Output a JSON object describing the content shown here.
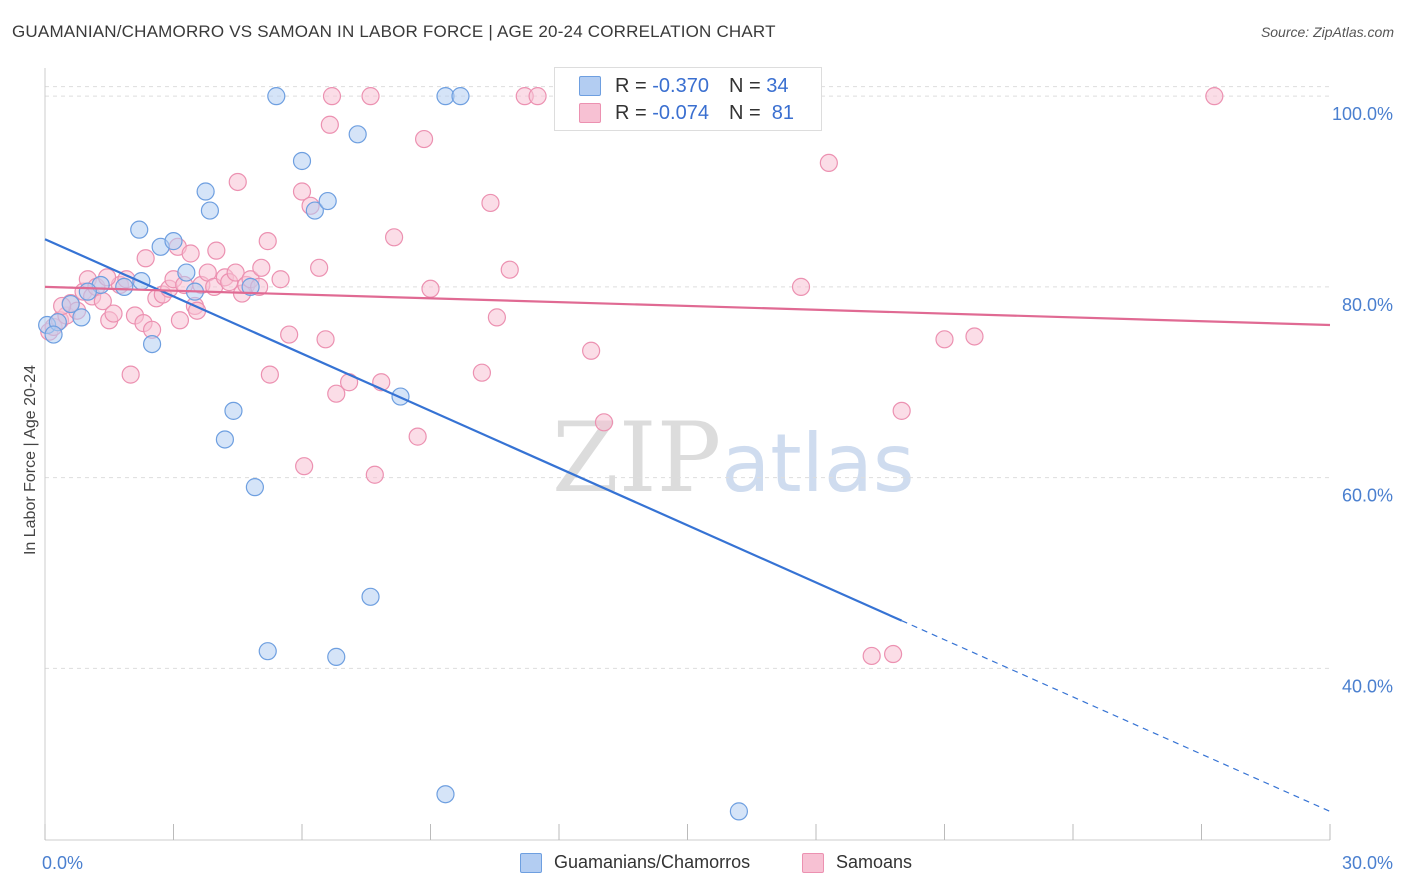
{
  "title": "GUAMANIAN/CHAMORRO VS SAMOAN IN LABOR FORCE | AGE 20-24 CORRELATION CHART",
  "source": "Source: ZipAtlas.com",
  "watermark": {
    "zip": "ZIP",
    "atlas": "atlas"
  },
  "legend_top": {
    "rows": [
      {
        "r_label": "R =",
        "r_value": "-0.370",
        "n_label": "N =",
        "n_value": "34"
      },
      {
        "r_label": "R =",
        "r_value": "-0.074",
        "n_label": "N =",
        "n_value": "81"
      }
    ]
  },
  "legend_bottom": {
    "items": [
      "Guamanians/Chamorros",
      "Samoans"
    ]
  },
  "colors": {
    "blue_fill": "#b3cdf2",
    "blue_stroke": "#6e9fe0",
    "blue_line": "#3673d4",
    "pink_fill": "#f7c1d3",
    "pink_stroke": "#ec91b1",
    "pink_line": "#e06a93",
    "grid": "#dddddd",
    "tick_text": "#4a7fcf"
  },
  "chart_data": {
    "type": "scatter",
    "title": "GUAMANIAN/CHAMORRO VS SAMOAN IN LABOR FORCE | AGE 20-24 CORRELATION CHART",
    "xlabel": "",
    "ylabel": "In Labor Force | Age 20-24",
    "xlim": [
      0,
      30
    ],
    "ylim": [
      22,
      104
    ],
    "x_tick_labels": [
      "0.0%",
      "30.0%"
    ],
    "y_ticks": [
      40,
      60,
      80,
      100
    ],
    "y_tick_labels": [
      "40.0%",
      "60.0%",
      "80.0%",
      "100.0%"
    ],
    "grid": true,
    "legend_position": "top-center",
    "series": [
      {
        "name": "Guamanians/Chamorros",
        "color": "#b3cdf2",
        "points": [
          [
            0.05,
            76.0
          ],
          [
            0.3,
            76.3
          ],
          [
            0.6,
            78.2
          ],
          [
            0.85,
            76.8
          ],
          [
            1.3,
            80.2
          ],
          [
            1.85,
            80.0
          ],
          [
            2.25,
            80.6
          ],
          [
            2.2,
            86.0
          ],
          [
            2.5,
            74.0
          ],
          [
            2.7,
            84.2
          ],
          [
            3.0,
            84.8
          ],
          [
            3.3,
            81.5
          ],
          [
            3.5,
            79.5
          ],
          [
            3.75,
            90.0
          ],
          [
            3.85,
            88.0
          ],
          [
            4.2,
            64.0
          ],
          [
            4.4,
            67.0
          ],
          [
            4.8,
            80.0
          ],
          [
            4.9,
            59.0
          ],
          [
            5.2,
            41.8
          ],
          [
            5.4,
            100.0
          ],
          [
            6.0,
            93.2
          ],
          [
            6.3,
            88.0
          ],
          [
            6.6,
            89.0
          ],
          [
            6.8,
            41.2
          ],
          [
            7.3,
            96.0
          ],
          [
            7.6,
            47.5
          ],
          [
            8.3,
            68.5
          ],
          [
            9.35,
            26.8
          ],
          [
            9.35,
            100.0
          ],
          [
            9.7,
            100.0
          ],
          [
            16.2,
            25.0
          ],
          [
            0.2,
            75.0
          ],
          [
            1.0,
            79.5
          ]
        ]
      },
      {
        "name": "Samoans",
        "color": "#f7c1d3",
        "points": [
          [
            0.1,
            75.3
          ],
          [
            0.2,
            75.8
          ],
          [
            0.35,
            76.5
          ],
          [
            0.5,
            77.0
          ],
          [
            0.6,
            78.3
          ],
          [
            0.75,
            77.5
          ],
          [
            0.9,
            79.5
          ],
          [
            1.0,
            80.8
          ],
          [
            1.1,
            79.0
          ],
          [
            1.2,
            80.0
          ],
          [
            1.35,
            78.5
          ],
          [
            1.5,
            76.5
          ],
          [
            1.6,
            77.2
          ],
          [
            1.75,
            80.2
          ],
          [
            1.9,
            80.8
          ],
          [
            2.0,
            70.8
          ],
          [
            2.1,
            77.0
          ],
          [
            2.3,
            76.2
          ],
          [
            2.35,
            83.0
          ],
          [
            2.5,
            75.5
          ],
          [
            2.6,
            78.8
          ],
          [
            2.75,
            79.2
          ],
          [
            2.9,
            79.8
          ],
          [
            3.0,
            80.8
          ],
          [
            3.1,
            84.2
          ],
          [
            3.15,
            76.5
          ],
          [
            3.25,
            80.2
          ],
          [
            3.4,
            83.5
          ],
          [
            3.5,
            78.0
          ],
          [
            3.55,
            77.5
          ],
          [
            3.65,
            80.2
          ],
          [
            3.8,
            81.5
          ],
          [
            3.95,
            80.0
          ],
          [
            4.0,
            83.8
          ],
          [
            4.2,
            81.0
          ],
          [
            4.3,
            80.5
          ],
          [
            4.45,
            81.5
          ],
          [
            4.5,
            91.0
          ],
          [
            4.6,
            79.3
          ],
          [
            4.7,
            80.2
          ],
          [
            4.8,
            80.8
          ],
          [
            5.0,
            80.0
          ],
          [
            5.05,
            82.0
          ],
          [
            5.2,
            84.8
          ],
          [
            5.25,
            70.8
          ],
          [
            5.5,
            80.8
          ],
          [
            5.7,
            75.0
          ],
          [
            6.0,
            90.0
          ],
          [
            6.05,
            61.2
          ],
          [
            6.2,
            88.5
          ],
          [
            6.4,
            82.0
          ],
          [
            6.55,
            74.5
          ],
          [
            6.7,
            100.0
          ],
          [
            6.8,
            68.8
          ],
          [
            6.65,
            97.0
          ],
          [
            7.1,
            70.0
          ],
          [
            7.6,
            100.0
          ],
          [
            7.7,
            60.3
          ],
          [
            7.85,
            70.0
          ],
          [
            8.15,
            85.2
          ],
          [
            8.7,
            64.3
          ],
          [
            8.85,
            95.5
          ],
          [
            9.0,
            79.8
          ],
          [
            10.2,
            71.0
          ],
          [
            10.4,
            88.8
          ],
          [
            10.55,
            76.8
          ],
          [
            10.85,
            81.8
          ],
          [
            11.2,
            100.0
          ],
          [
            11.5,
            100.0
          ],
          [
            12.75,
            73.3
          ],
          [
            13.05,
            65.8
          ],
          [
            17.65,
            80.0
          ],
          [
            18.3,
            93.0
          ],
          [
            19.3,
            41.3
          ],
          [
            19.8,
            41.5
          ],
          [
            20.0,
            67.0
          ],
          [
            21.0,
            74.5
          ],
          [
            21.7,
            74.8
          ],
          [
            27.3,
            100.0
          ],
          [
            0.4,
            78.0
          ],
          [
            1.45,
            81.0
          ]
        ]
      }
    ],
    "trend_lines": [
      {
        "series": "Guamanians/Chamorros",
        "x_start": 0,
        "y_start": 85.0,
        "x_solid_end": 20.0,
        "x_end": 30.0,
        "y_end": 25.0,
        "style": "solid then dashed"
      },
      {
        "series": "Samoans",
        "x_start": 0,
        "y_start": 80.0,
        "x_end": 30.0,
        "y_end": 76.0,
        "style": "solid"
      }
    ]
  }
}
